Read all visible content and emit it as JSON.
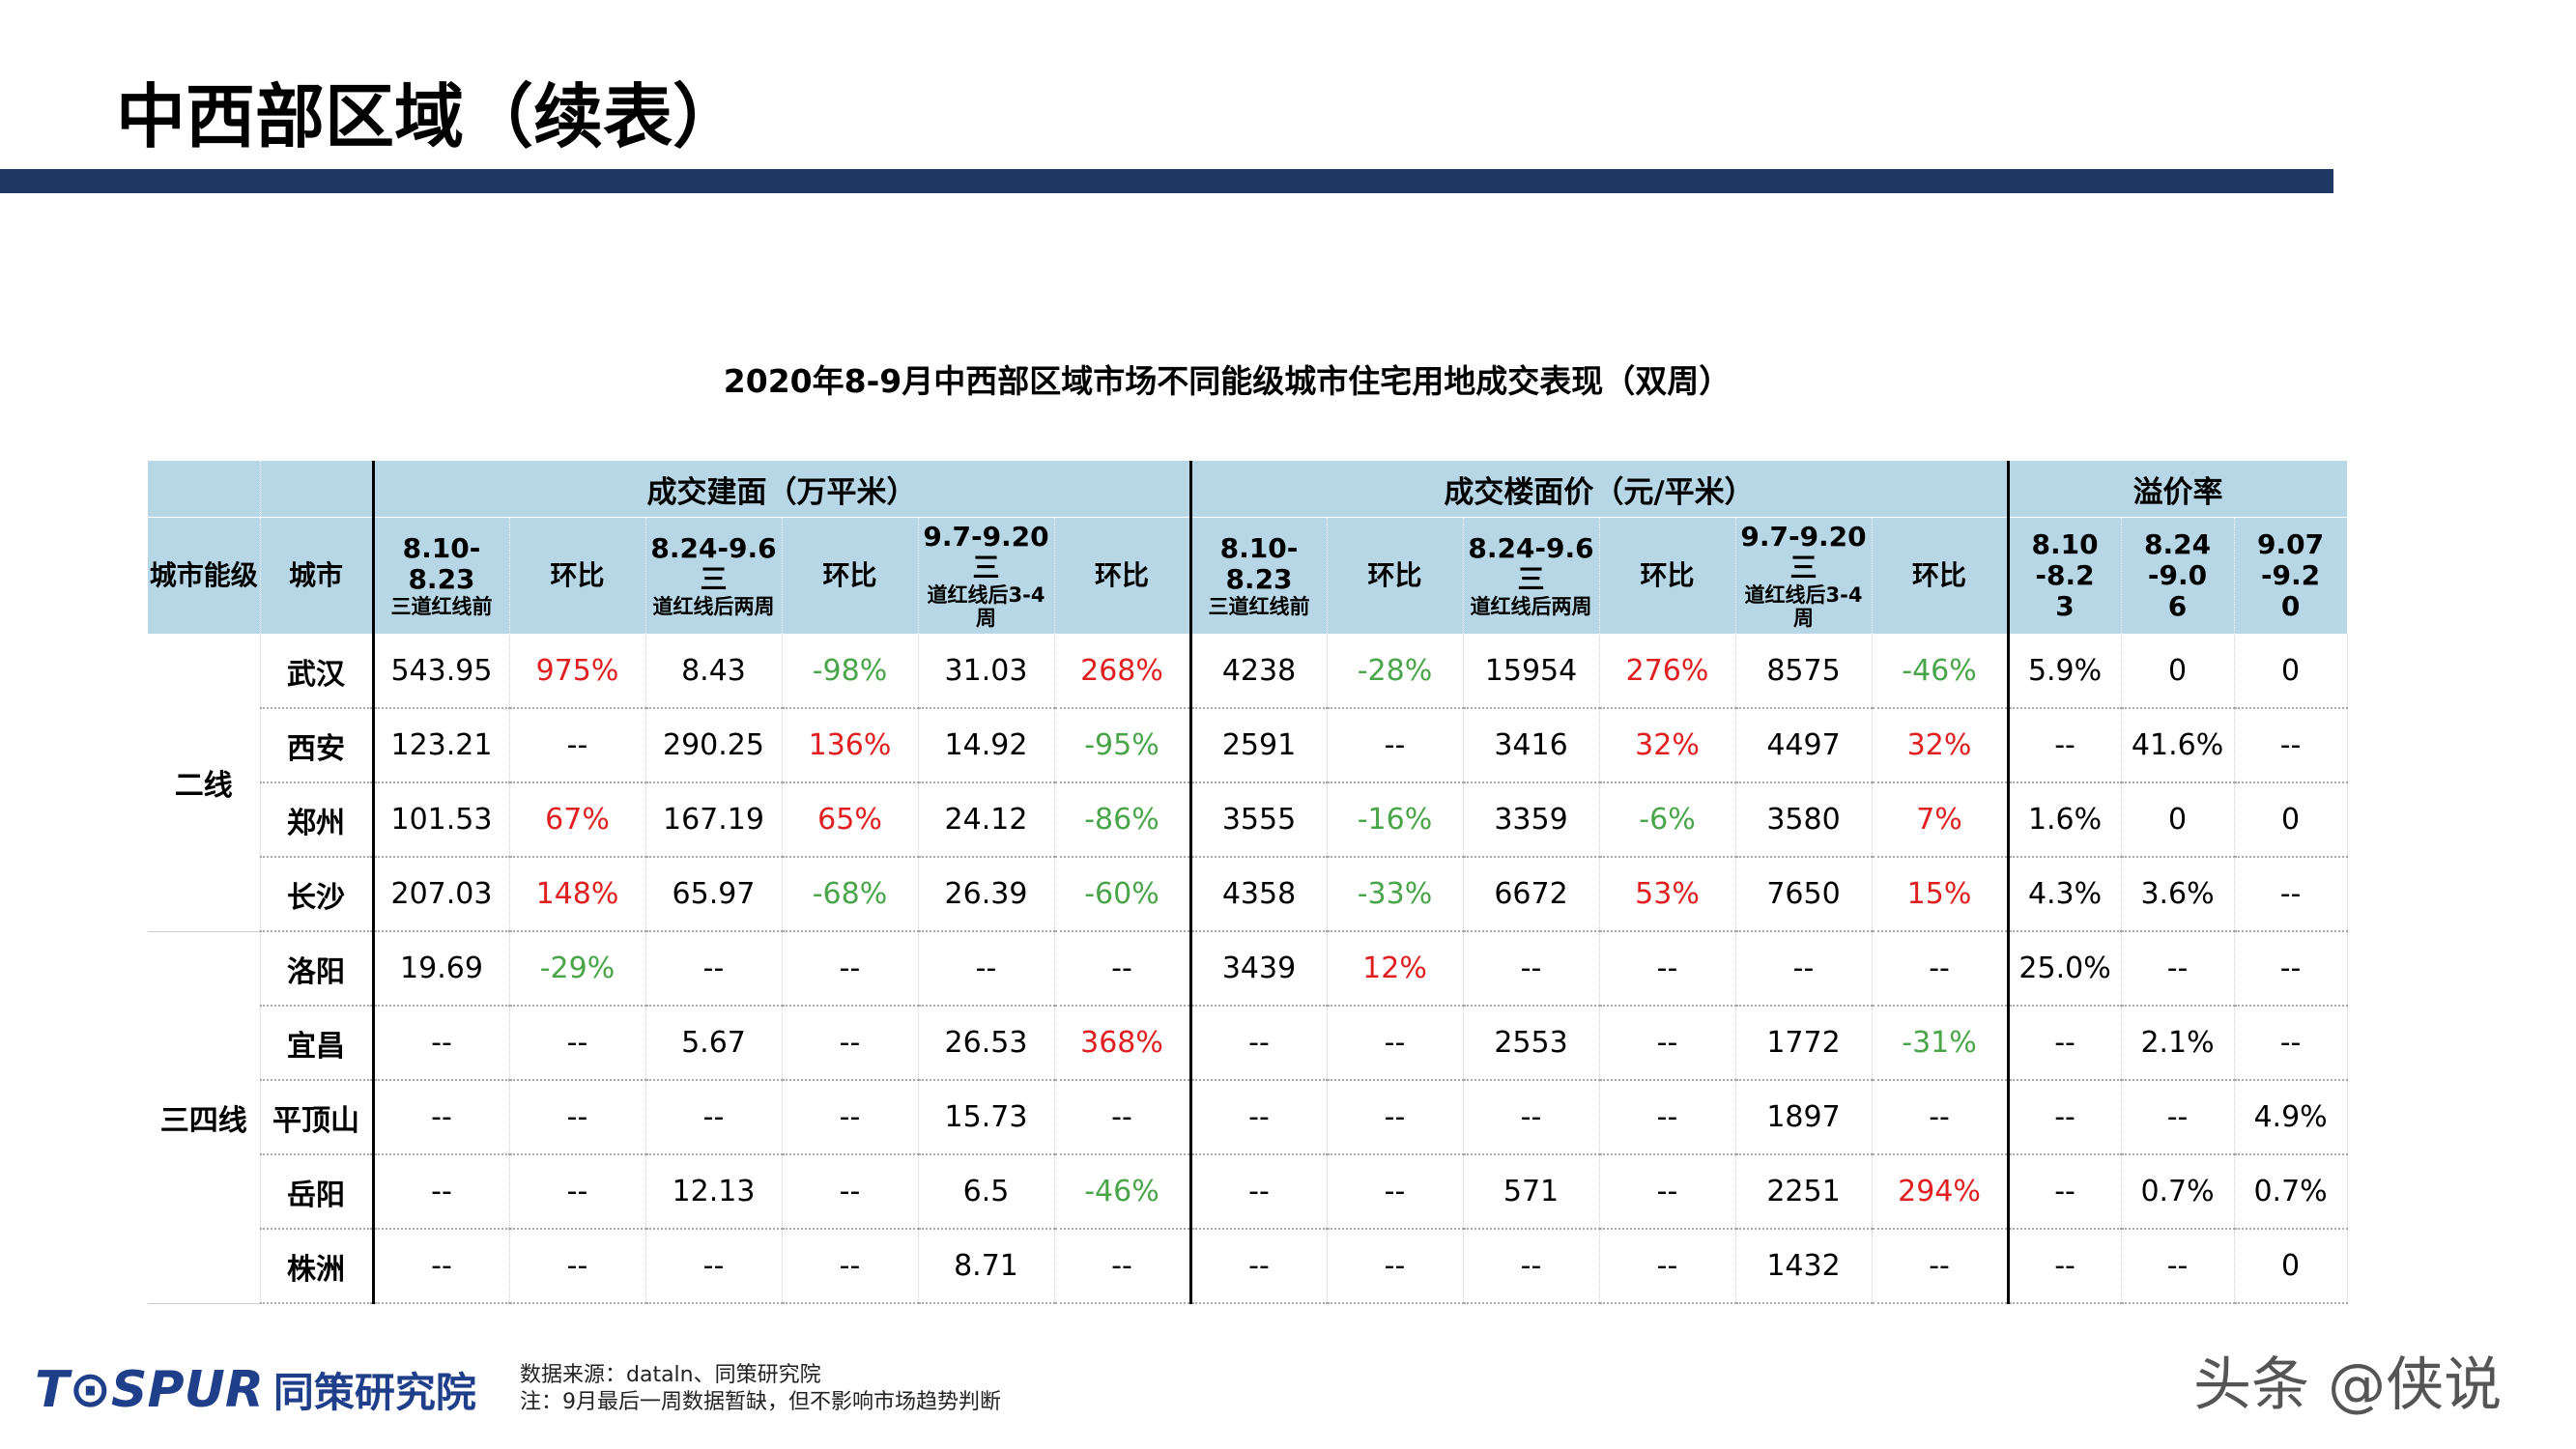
{
  "header": {
    "title": "中西部区域（续表）"
  },
  "table": {
    "title": "2020年8-9月中西部区域市场不同能级城市住宅用地成交表现（双周）",
    "groups": [
      "成交建面（万平米）",
      "成交楼面价（元/平米）",
      "溢价率"
    ],
    "columns": [
      {
        "main": "城市能级"
      },
      {
        "main": "城市"
      },
      {
        "main": "8.10-8.23",
        "sub": "三道红线前"
      },
      {
        "main": "环比"
      },
      {
        "main": "8.24-9.6三",
        "sub": "道红线后两周"
      },
      {
        "main": "环比"
      },
      {
        "main": "9.7-9.20三",
        "sub": "道红线后3-4周"
      },
      {
        "main": "环比"
      },
      {
        "main": "8.10-8.23",
        "sub": "三道红线前"
      },
      {
        "main": "环比"
      },
      {
        "main": "8.24-9.6三",
        "sub": "道红线后两周"
      },
      {
        "main": "环比"
      },
      {
        "main": "9.7-9.20三",
        "sub": "道红线后3-4周"
      },
      {
        "main": "环比"
      },
      {
        "main": "8.10-8.23"
      },
      {
        "main": "8.24-9.06"
      },
      {
        "main": "9.07-9.20"
      }
    ],
    "tiers": [
      {
        "name": "二线",
        "cities": [
          {
            "name": "武汉",
            "cells": [
              "543.95",
              "975%",
              "8.43",
              "-98%",
              "31.03",
              "268%",
              "4238",
              "-28%",
              "15954",
              "276%",
              "8575",
              "-46%",
              "5.9%",
              "0",
              "0"
            ]
          },
          {
            "name": "西安",
            "cells": [
              "123.21",
              "--",
              "290.25",
              "136%",
              "14.92",
              "-95%",
              "2591",
              "--",
              "3416",
              "32%",
              "4497",
              "32%",
              "--",
              "41.6%",
              "--"
            ]
          },
          {
            "name": "郑州",
            "cells": [
              "101.53",
              "67%",
              "167.19",
              "65%",
              "24.12",
              "-86%",
              "3555",
              "-16%",
              "3359",
              "-6%",
              "3580",
              "7%",
              "1.6%",
              "0",
              "0"
            ]
          },
          {
            "name": "长沙",
            "cells": [
              "207.03",
              "148%",
              "65.97",
              "-68%",
              "26.39",
              "-60%",
              "4358",
              "-33%",
              "6672",
              "53%",
              "7650",
              "15%",
              "4.3%",
              "3.6%",
              "--"
            ]
          }
        ]
      },
      {
        "name": "三四线",
        "cities": [
          {
            "name": "洛阳",
            "cells": [
              "19.69",
              "-29%",
              "--",
              "--",
              "--",
              "--",
              "3439",
              "12%",
              "--",
              "--",
              "--",
              "--",
              "25.0%",
              "--",
              "--"
            ]
          },
          {
            "name": "宜昌",
            "cells": [
              "--",
              "--",
              "5.67",
              "--",
              "26.53",
              "368%",
              "--",
              "--",
              "2553",
              "--",
              "1772",
              "-31%",
              "--",
              "2.1%",
              "--"
            ]
          },
          {
            "name": "平顶山",
            "cells": [
              "--",
              "--",
              "--",
              "--",
              "15.73",
              "--",
              "--",
              "--",
              "--",
              "--",
              "1897",
              "--",
              "--",
              "--",
              "4.9%"
            ]
          },
          {
            "name": "岳阳",
            "cells": [
              "--",
              "--",
              "12.13",
              "--",
              "6.5",
              "-46%",
              "--",
              "--",
              "571",
              "--",
              "2251",
              "294%",
              "--",
              "0.7%",
              "0.7%"
            ]
          },
          {
            "name": "株洲",
            "cells": [
              "--",
              "--",
              "--",
              "--",
              "8.71",
              "--",
              "--",
              "--",
              "--",
              "--",
              "1432",
              "--",
              "--",
              "--",
              "0"
            ]
          }
        ]
      }
    ]
  },
  "footer": {
    "logo": "T⊙SPUR",
    "logo_cn": "同策研究院",
    "source": "数据来源：dataln、同策研究院",
    "note": "注：9月最后一周数据暂缺，但不影响市场趋势判断",
    "watermark": "头条 @侠说"
  }
}
